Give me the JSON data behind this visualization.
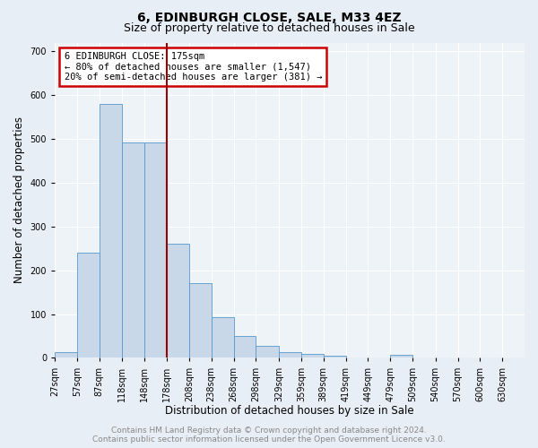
{
  "title": "6, EDINBURGH CLOSE, SALE, M33 4EZ",
  "subtitle": "Size of property relative to detached houses in Sale",
  "xlabel": "Distribution of detached houses by size in Sale",
  "ylabel": "Number of detached properties",
  "bin_labels": [
    "27sqm",
    "57sqm",
    "87sqm",
    "118sqm",
    "148sqm",
    "178sqm",
    "208sqm",
    "238sqm",
    "268sqm",
    "298sqm",
    "329sqm",
    "359sqm",
    "389sqm",
    "419sqm",
    "449sqm",
    "479sqm",
    "509sqm",
    "540sqm",
    "570sqm",
    "600sqm",
    "630sqm"
  ],
  "bin_left_edges": [
    27,
    57,
    87,
    118,
    148,
    178,
    208,
    238,
    268,
    298,
    329,
    359,
    389,
    419,
    449,
    479,
    509,
    540,
    570,
    600,
    630
  ],
  "bar_widths": [
    30,
    30,
    31,
    30,
    30,
    30,
    30,
    30,
    30,
    31,
    30,
    30,
    30,
    30,
    30,
    30,
    31,
    30,
    30,
    30,
    30
  ],
  "bar_heights": [
    13,
    241,
    580,
    492,
    492,
    260,
    170,
    92,
    50,
    27,
    13,
    10,
    5,
    0,
    0,
    7,
    0,
    0,
    0,
    0,
    0
  ],
  "bar_color": "#c8d8e8",
  "bar_edge_color": "#5599cc",
  "vline_x": 178,
  "vline_color": "#990000",
  "annotation_text_line1": "6 EDINBURGH CLOSE: 175sqm",
  "annotation_text_line2": "← 80% of detached houses are smaller (1,547)",
  "annotation_text_line3": "20% of semi-detached houses are larger (381) →",
  "annotation_box_color": "#cc0000",
  "ylim": [
    0,
    720
  ],
  "yticks": [
    0,
    100,
    200,
    300,
    400,
    500,
    600,
    700
  ],
  "footer_line1": "Contains HM Land Registry data © Crown copyright and database right 2024.",
  "footer_line2": "Contains public sector information licensed under the Open Government Licence v3.0.",
  "bg_color": "#e8eef5",
  "plot_bg_color": "#eef3f8",
  "grid_color": "#ffffff",
  "title_fontsize": 10,
  "subtitle_fontsize": 9,
  "label_fontsize": 8.5,
  "tick_fontsize": 7,
  "footer_fontsize": 6.5,
  "annotation_fontsize": 7.5
}
